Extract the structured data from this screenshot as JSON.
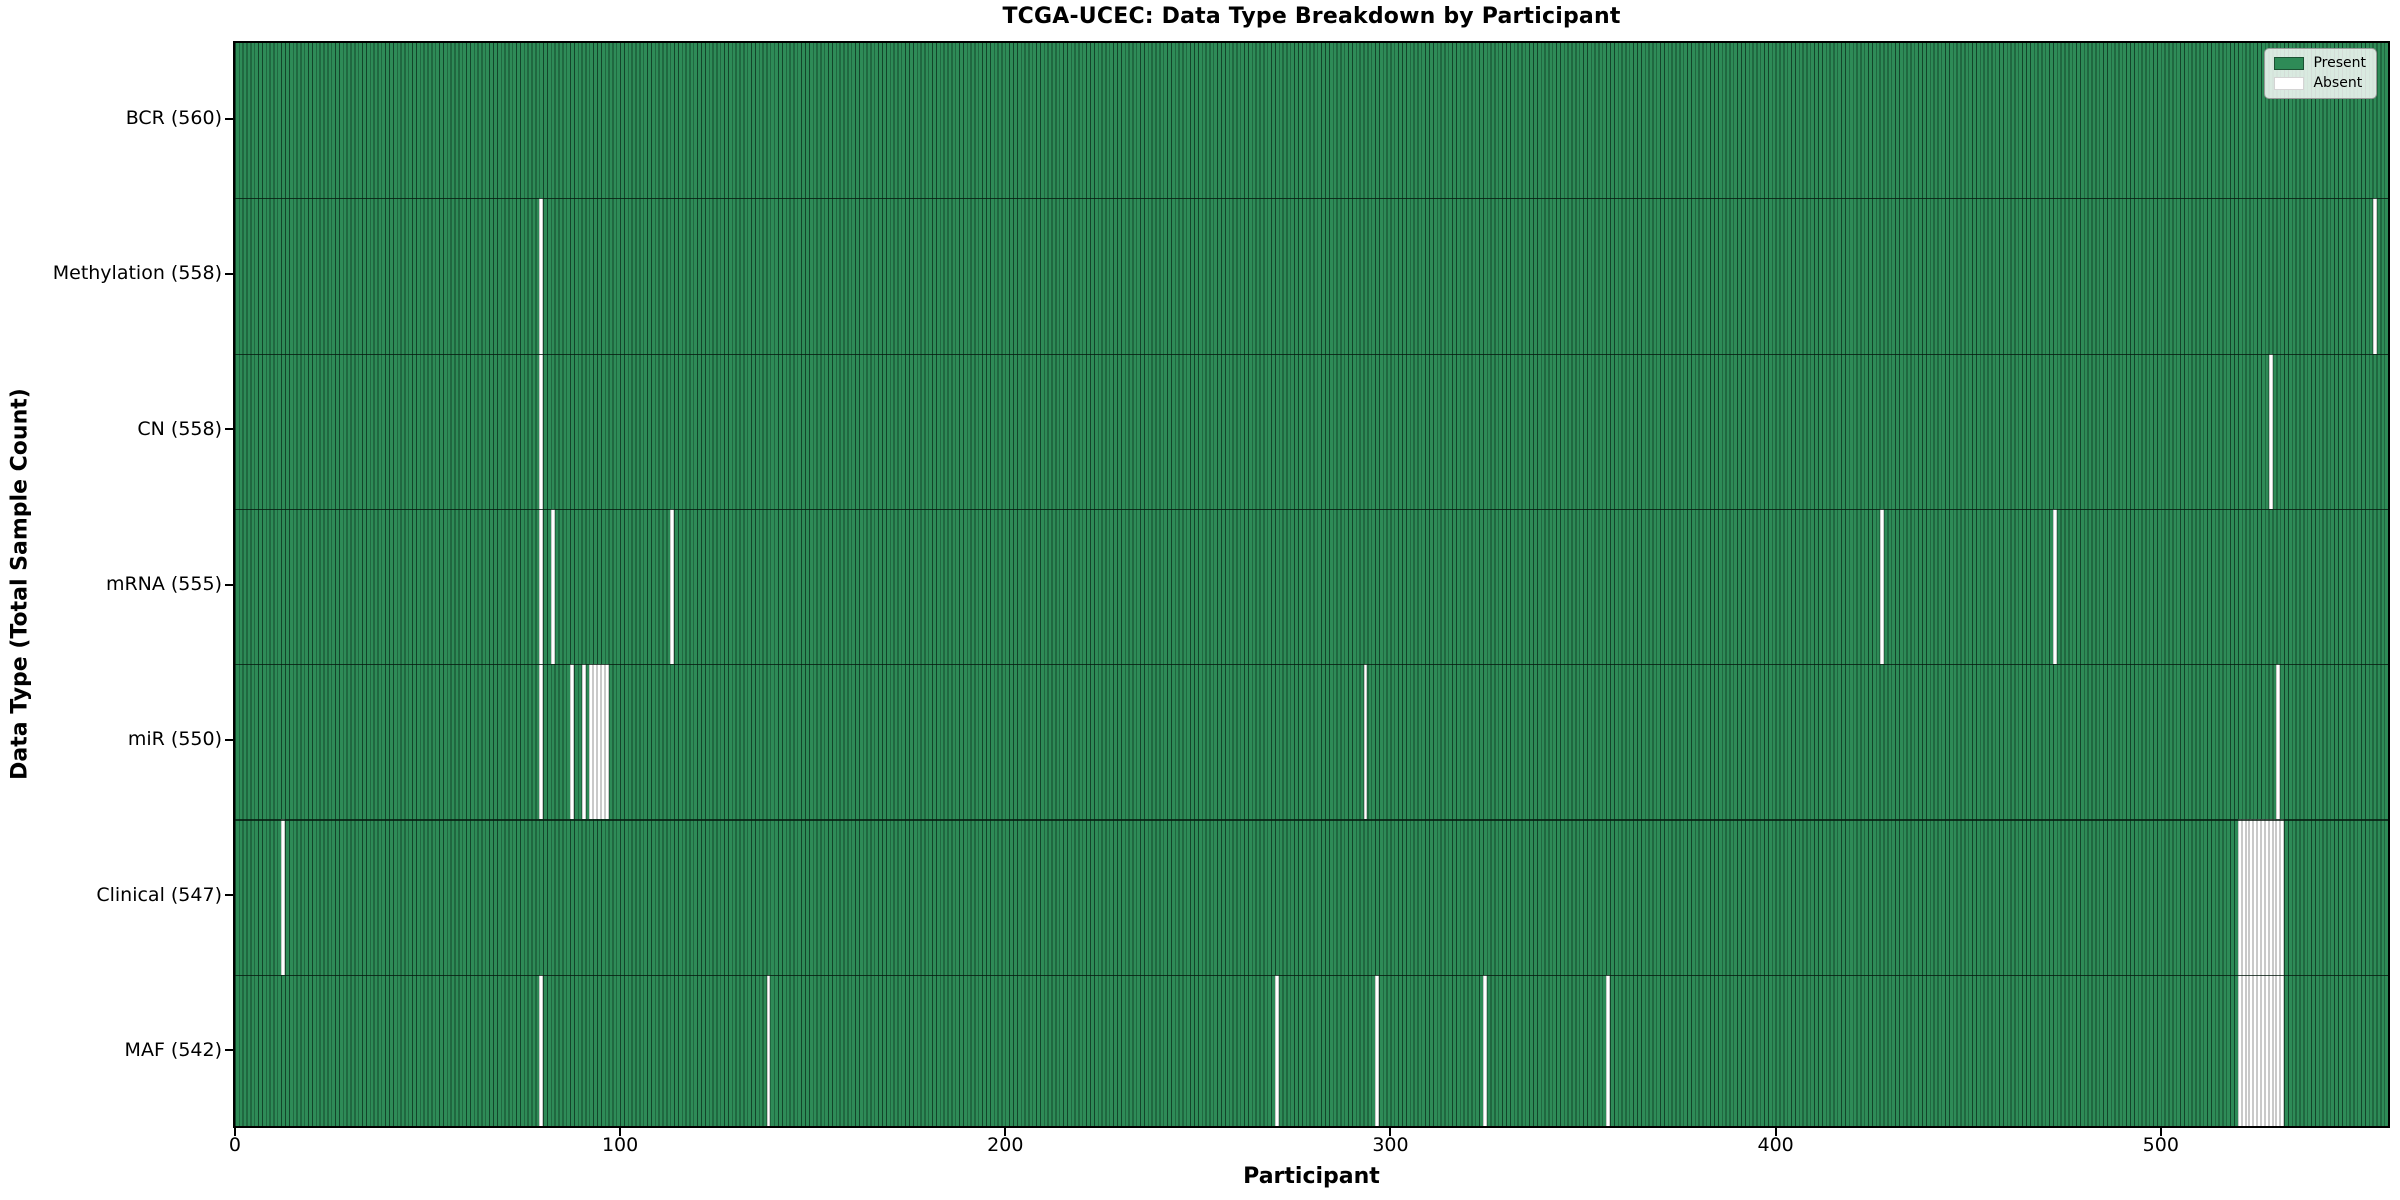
{
  "figure": {
    "title": "TCGA-UCEC: Data Type Breakdown by Participant",
    "xlabel": "Participant",
    "ylabel": "Data Type (Total Sample Count)"
  },
  "legend": {
    "present_label": "Present",
    "absent_label": "Absent"
  },
  "colors": {
    "present_fill": "#2e8b57",
    "present_edge": "#1b5233",
    "absent_fill": "#ffffff",
    "absent_edge": "#c9c9c9",
    "row_separator": "#0d2417",
    "axis": "#000000"
  },
  "chart_data": {
    "type": "heatmap",
    "title": "TCGA-UCEC: Data Type Breakdown by Participant",
    "xlabel": "Participant",
    "ylabel": "Data Type (Total Sample Count)",
    "x_ticks": [
      0,
      100,
      200,
      300,
      400,
      500
    ],
    "xlim": [
      -0.5,
      559.5
    ],
    "n_participants": 560,
    "grid": false,
    "legend_position": "upper right",
    "legend_entries": [
      "Present",
      "Absent"
    ],
    "rows": [
      {
        "label": "BCR (560)",
        "data_type": "BCR",
        "present_count": 560,
        "absent_participants": []
      },
      {
        "label": "Methylation (558)",
        "data_type": "Methylation",
        "present_count": 558,
        "absent_participants": [
          79,
          555
        ]
      },
      {
        "label": "CN (558)",
        "data_type": "CN",
        "present_count": 558,
        "absent_participants": [
          79,
          528
        ]
      },
      {
        "label": "mRNA (555)",
        "data_type": "mRNA",
        "present_count": 555,
        "absent_participants": [
          79,
          82,
          113,
          427,
          472
        ]
      },
      {
        "label": "miR (550)",
        "data_type": "miR",
        "present_count": 550,
        "absent_participants": [
          79,
          87,
          90,
          92,
          93,
          94,
          95,
          96,
          293,
          530
        ]
      },
      {
        "label": "Clinical (547)",
        "data_type": "Clinical",
        "present_count": 547,
        "absent_participants": [
          12,
          520,
          521,
          522,
          523,
          524,
          525,
          526,
          527,
          528,
          529,
          530,
          531
        ]
      },
      {
        "label": "MAF (542)",
        "data_type": "MAF",
        "present_count": 542,
        "absent_participants": [
          79,
          138,
          270,
          296,
          324,
          356,
          520,
          521,
          522,
          523,
          524,
          525,
          526,
          527,
          528,
          529,
          530,
          531
        ]
      }
    ]
  }
}
